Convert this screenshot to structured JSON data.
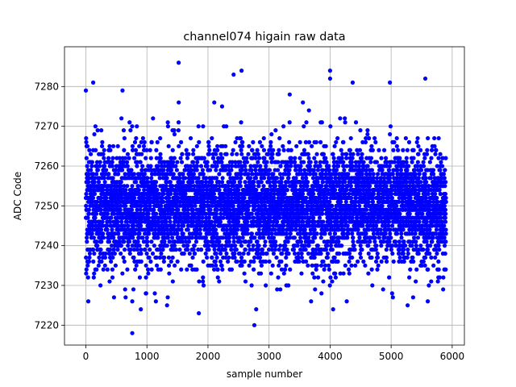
{
  "chart_data": {
    "type": "scatter",
    "title": "channel074 higain raw data",
    "xlabel": "sample number",
    "ylabel": "ADC Code",
    "xlim": [
      -350,
      6200
    ],
    "ylim": [
      7215,
      7290
    ],
    "x_ticks": [
      0,
      1000,
      2000,
      3000,
      4000,
      5000,
      6000
    ],
    "y_ticks": [
      7220,
      7230,
      7240,
      7250,
      7260,
      7270,
      7280
    ],
    "grid": true,
    "marker_color": "#0000ff",
    "n_samples": 5900,
    "distribution": {
      "mean": 7250,
      "core_range": [
        7235,
        7265
      ],
      "min": 7218,
      "max": 7286
    },
    "notable_points": [
      {
        "x": 1520,
        "y": 7286
      },
      {
        "x": 2550,
        "y": 7284
      },
      {
        "x": 4000,
        "y": 7284
      },
      {
        "x": 2420,
        "y": 7283
      },
      {
        "x": 4000,
        "y": 7282
      },
      {
        "x": 5560,
        "y": 7282
      },
      {
        "x": 120,
        "y": 7281
      },
      {
        "x": 4370,
        "y": 7281
      },
      {
        "x": 4980,
        "y": 7281
      },
      {
        "x": 0,
        "y": 7279
      },
      {
        "x": 600,
        "y": 7279
      },
      {
        "x": 2760,
        "y": 7220
      },
      {
        "x": 2790,
        "y": 7224
      },
      {
        "x": 760,
        "y": 7218
      },
      {
        "x": 4050,
        "y": 7224
      },
      {
        "x": 40,
        "y": 7226
      },
      {
        "x": 760,
        "y": 7226
      },
      {
        "x": 900,
        "y": 7224
      },
      {
        "x": 1850,
        "y": 7223
      },
      {
        "x": 1330,
        "y": 7225
      },
      {
        "x": 5600,
        "y": 7226
      },
      {
        "x": 5270,
        "y": 7225
      }
    ]
  }
}
